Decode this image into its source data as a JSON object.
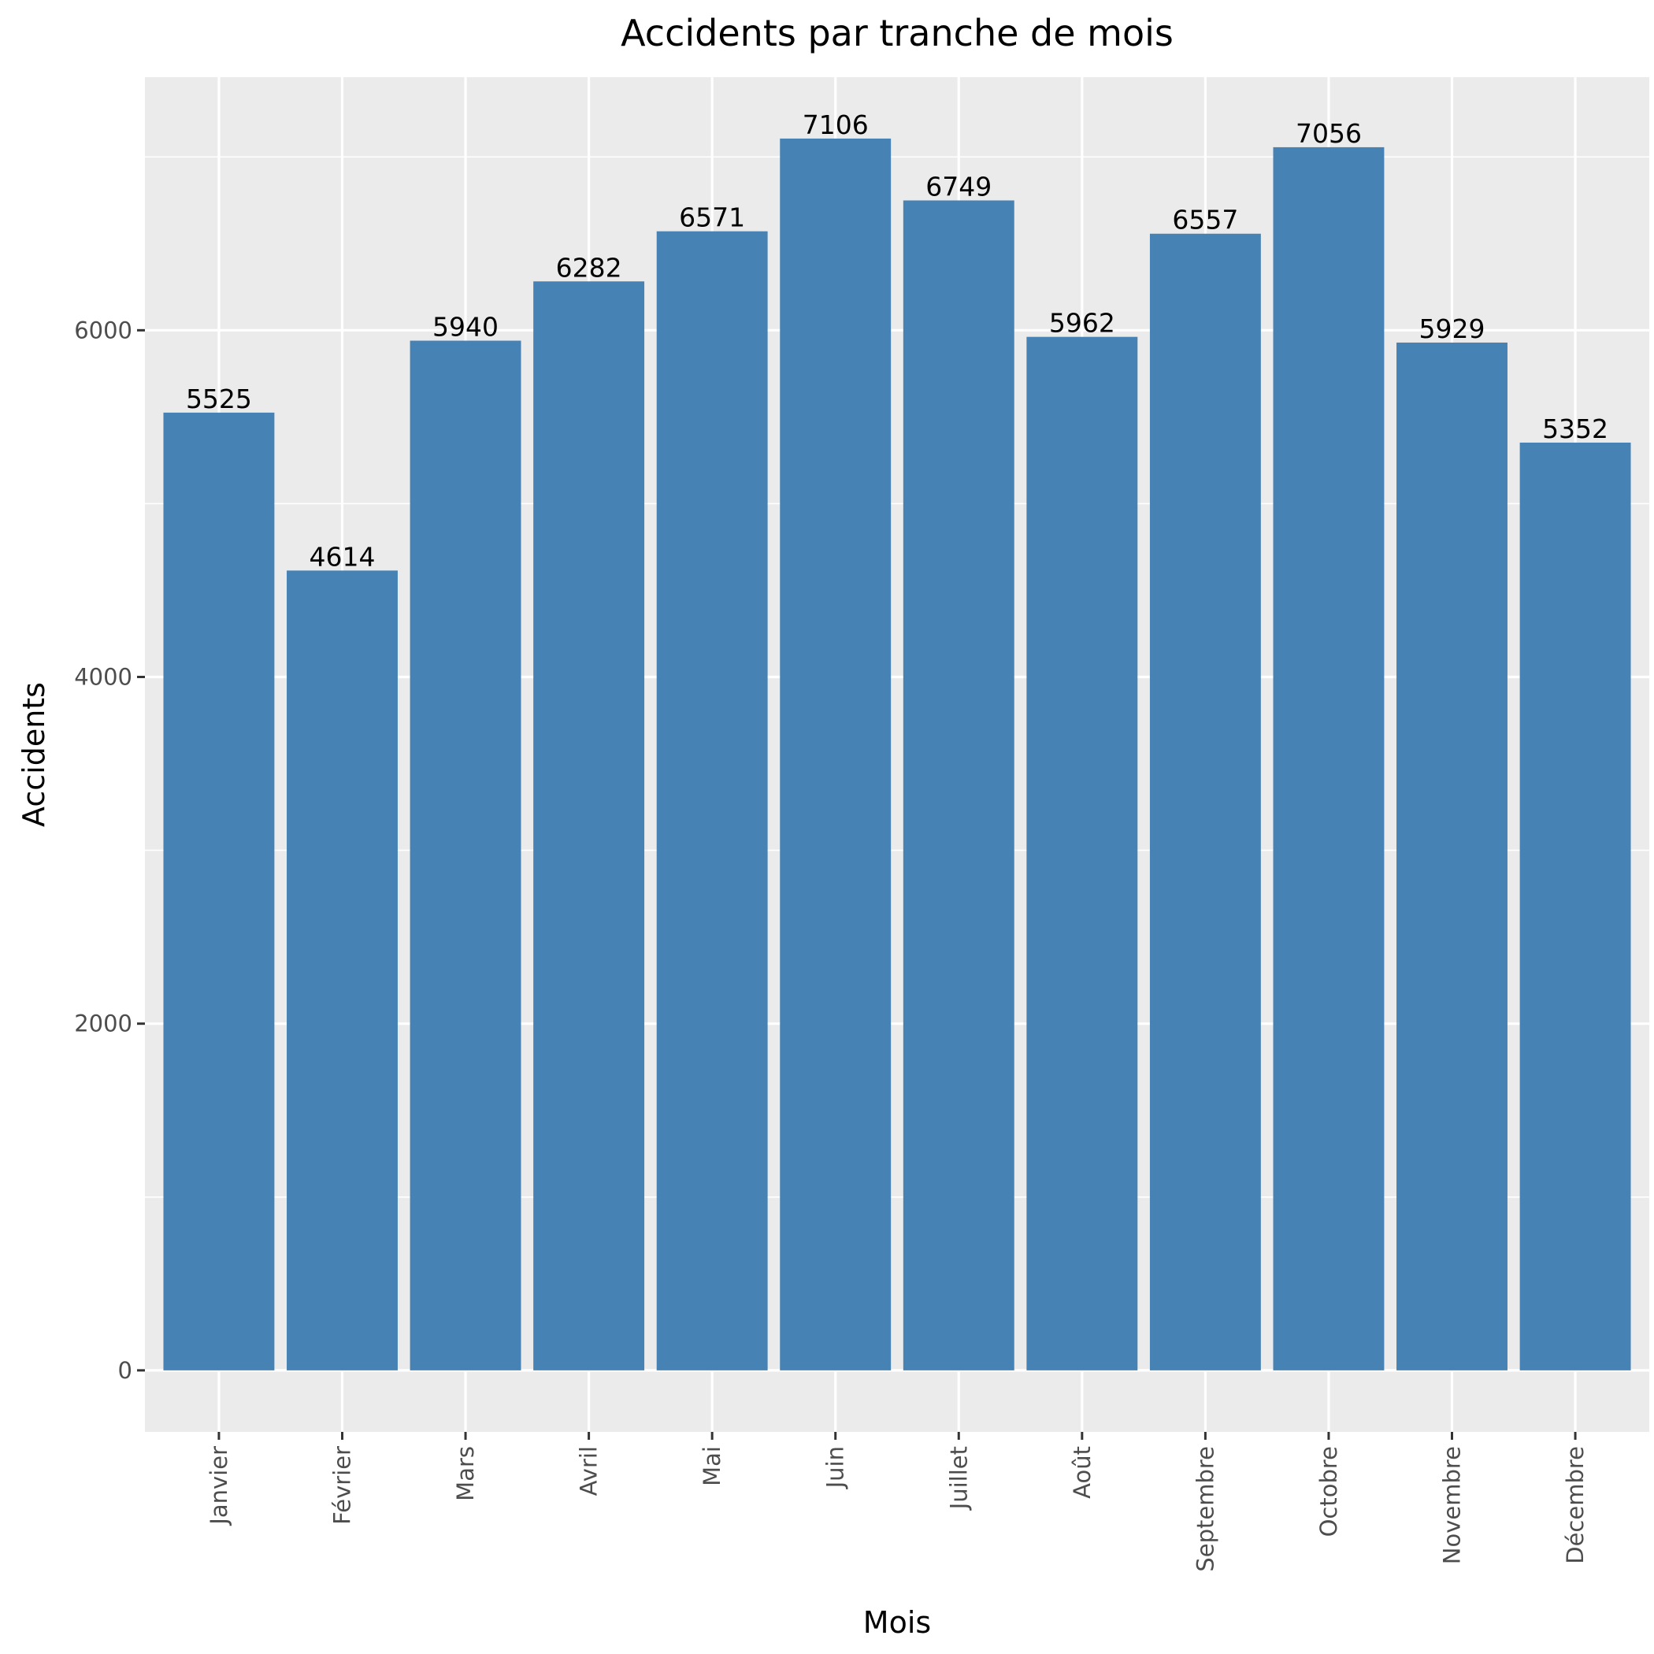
{
  "chart_data": {
    "type": "bar",
    "title": "Accidents par tranche de mois",
    "xlabel": "Mois",
    "ylabel": "Accidents",
    "categories": [
      "Janvier",
      "Février",
      "Mars",
      "Avril",
      "Mai",
      "Juin",
      "Juillet",
      "Août",
      "Septembre",
      "Octobre",
      "Novembre",
      "Décembre"
    ],
    "values": [
      5525,
      4614,
      5940,
      6282,
      6571,
      7106,
      6749,
      5962,
      6557,
      7056,
      5929,
      5352
    ],
    "yticks": [
      0,
      2000,
      4000,
      6000
    ],
    "ylim": [
      -355,
      7460
    ],
    "grid": true,
    "bar_color": "#4682b4",
    "panel_color": "#ebebeb",
    "grid_color": "#ffffff",
    "show_data_labels": true
  }
}
